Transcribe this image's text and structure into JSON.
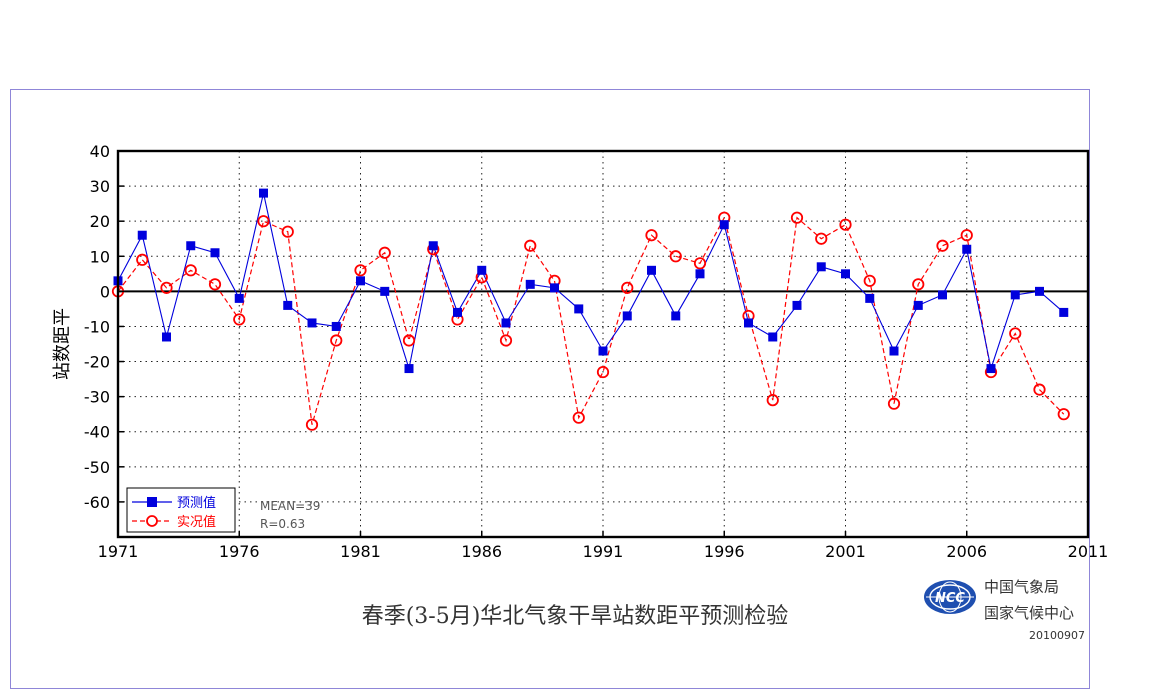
{
  "figure": {
    "title": "春季(3-5月)华北气象干旱站数距平预测检验",
    "organization": {
      "name_cma": "中国气象局",
      "name_ncc": "国家气候中心",
      "logo_text": "NCC",
      "logo_icon": "ncc-globe-logo-icon"
    },
    "issue_date": "20100907",
    "stats": {
      "mean": "MEAN=39",
      "r": "R=0.63"
    },
    "colors": {
      "predicted": "#0000dd",
      "observed": "#ff0000",
      "frame": "#8f86d8",
      "axis": "#000000"
    }
  },
  "chart_data": {
    "type": "line",
    "xlabel": "",
    "ylabel": "站数距平",
    "xlim": [
      1971,
      2011
    ],
    "ylim": [
      -70,
      40
    ],
    "xticks": [
      1971,
      1976,
      1981,
      1986,
      1991,
      1996,
      2001,
      2006,
      2011
    ],
    "yticks": [
      40,
      30,
      20,
      10,
      0,
      -10,
      -20,
      -30,
      -40,
      -50,
      -60
    ],
    "grid": true,
    "legend_position": "bottom-left",
    "x": [
      1971,
      1972,
      1973,
      1974,
      1975,
      1976,
      1977,
      1978,
      1979,
      1980,
      1981,
      1982,
      1983,
      1984,
      1985,
      1986,
      1987,
      1988,
      1989,
      1990,
      1991,
      1992,
      1993,
      1994,
      1995,
      1996,
      1997,
      1998,
      1999,
      2000,
      2001,
      2002,
      2003,
      2004,
      2005,
      2006,
      2007,
      2008,
      2009,
      2010
    ],
    "series": [
      {
        "name": "预测值",
        "style": "solid-line-filled-square",
        "color": "#0000dd",
        "values": [
          3,
          16,
          -13,
          13,
          11,
          -2,
          28,
          -4,
          -9,
          -10,
          3,
          0,
          -22,
          13,
          -6,
          6,
          -9,
          2,
          1,
          -5,
          -17,
          -7,
          6,
          -7,
          5,
          19,
          -9,
          -13,
          -4,
          7,
          5,
          -2,
          -17,
          -4,
          -1,
          12,
          -22,
          -1,
          0,
          -6
        ]
      },
      {
        "name": "实况值",
        "style": "dashed-line-open-circle",
        "color": "#ff0000",
        "values": [
          0,
          9,
          1,
          6,
          2,
          -8,
          20,
          17,
          -38,
          -14,
          6,
          11,
          -14,
          12,
          -8,
          4,
          -14,
          13,
          3,
          -36,
          -23,
          1,
          16,
          10,
          8,
          21,
          -7,
          -31,
          21,
          15,
          19,
          3,
          -32,
          2,
          13,
          16,
          -23,
          -12,
          -28,
          -35
        ]
      }
    ]
  }
}
